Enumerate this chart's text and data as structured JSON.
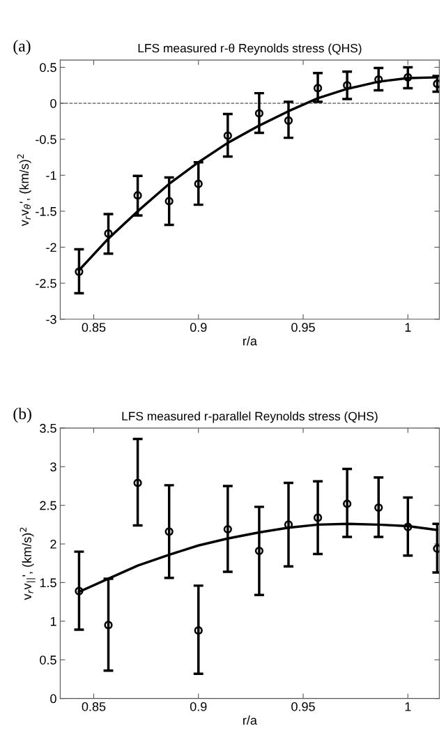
{
  "chart_data": [
    {
      "type": "scatter",
      "title": "LFS measured r-θ Reynolds stress (QHS)",
      "xlabel": "r/a",
      "ylabel": "v$_{r}$v$_{θ}$', (km/s)$^{2}$",
      "annotations": [
        "(a)"
      ],
      "xlim": [
        0.834,
        1.015
      ],
      "xticks": [
        0.85,
        0.9,
        0.95,
        1
      ],
      "ylim": [
        -3,
        0.6
      ],
      "yticks": [
        -3,
        -2.5,
        -2,
        -1.5,
        -1,
        -0.5,
        0,
        0.5
      ],
      "grid": false,
      "ref_lines": [
        {
          "axis": "y",
          "value": 0,
          "color": "#555555",
          "line_style": "dashed"
        }
      ],
      "series": [
        {
          "marker": "circle",
          "color": "#000000",
          "x": [
            0.843,
            0.857,
            0.871,
            0.886,
            0.9,
            0.914,
            0.929,
            0.943,
            0.957,
            0.971,
            0.986,
            1.0,
            1.014
          ],
          "values": [
            -2.34,
            -1.81,
            -1.28,
            -1.36,
            -1.12,
            -0.45,
            -0.14,
            -0.24,
            0.21,
            0.25,
            0.33,
            0.36,
            0.27
          ],
          "errors": [
            [
              -2.64,
              -2.03
            ],
            [
              -2.09,
              -1.54
            ],
            [
              -1.56,
              -1.01
            ],
            [
              -1.69,
              -1.03
            ],
            [
              -1.41,
              -0.82
            ],
            [
              -0.74,
              -0.15
            ],
            [
              -0.41,
              0.14
            ],
            [
              -0.48,
              0.02
            ],
            [
              0.02,
              0.42
            ],
            [
              0.06,
              0.44
            ],
            [
              0.18,
              0.49
            ],
            [
              0.21,
              0.5
            ],
            [
              0.16,
              0.38
            ]
          ]
        },
        {
          "type": "line",
          "color": "#000000",
          "x": [
            0.843,
            0.857,
            0.871,
            0.886,
            0.9,
            0.914,
            0.929,
            0.943,
            0.957,
            0.971,
            0.986,
            1.0,
            1.014
          ],
          "values": [
            -2.32,
            -1.88,
            -1.5,
            -1.12,
            -0.82,
            -0.55,
            -0.31,
            -0.11,
            0.07,
            0.2,
            0.3,
            0.35,
            0.36
          ]
        }
      ]
    },
    {
      "type": "scatter",
      "title": "LFS measured r-parallel Reynolds stress (QHS)",
      "xlabel": "r/a",
      "ylabel": "v$_{r}$v$_{||}$', (km/s)$^{2}$",
      "annotations": [
        "(b)"
      ],
      "xlim": [
        0.834,
        1.015
      ],
      "xticks": [
        0.85,
        0.9,
        0.95,
        1
      ],
      "ylim": [
        0,
        3.5
      ],
      "yticks": [
        0,
        0.5,
        1,
        1.5,
        2,
        2.5,
        3,
        3.5
      ],
      "grid": false,
      "series": [
        {
          "marker": "circle",
          "color": "#000000",
          "x": [
            0.843,
            0.857,
            0.871,
            0.886,
            0.9,
            0.914,
            0.929,
            0.943,
            0.957,
            0.971,
            0.986,
            1.0,
            1.014
          ],
          "values": [
            1.39,
            0.95,
            2.79,
            2.16,
            0.88,
            2.19,
            1.91,
            2.25,
            2.34,
            2.52,
            2.47,
            2.22,
            1.94
          ],
          "errors": [
            [
              0.89,
              1.9
            ],
            [
              0.36,
              1.55
            ],
            [
              2.24,
              3.36
            ],
            [
              1.56,
              2.76
            ],
            [
              0.32,
              1.46
            ],
            [
              1.64,
              2.75
            ],
            [
              1.34,
              2.48
            ],
            [
              1.71,
              2.79
            ],
            [
              1.87,
              2.81
            ],
            [
              2.09,
              2.97
            ],
            [
              2.09,
              2.86
            ],
            [
              1.85,
              2.6
            ],
            [
              1.63,
              2.26
            ]
          ]
        },
        {
          "type": "line",
          "color": "#000000",
          "x": [
            0.843,
            0.857,
            0.871,
            0.886,
            0.9,
            0.914,
            0.929,
            0.943,
            0.957,
            0.971,
            0.986,
            1.0,
            1.014
          ],
          "values": [
            1.38,
            1.55,
            1.72,
            1.86,
            1.98,
            2.07,
            2.15,
            2.21,
            2.25,
            2.26,
            2.25,
            2.23,
            2.18
          ]
        }
      ]
    }
  ]
}
